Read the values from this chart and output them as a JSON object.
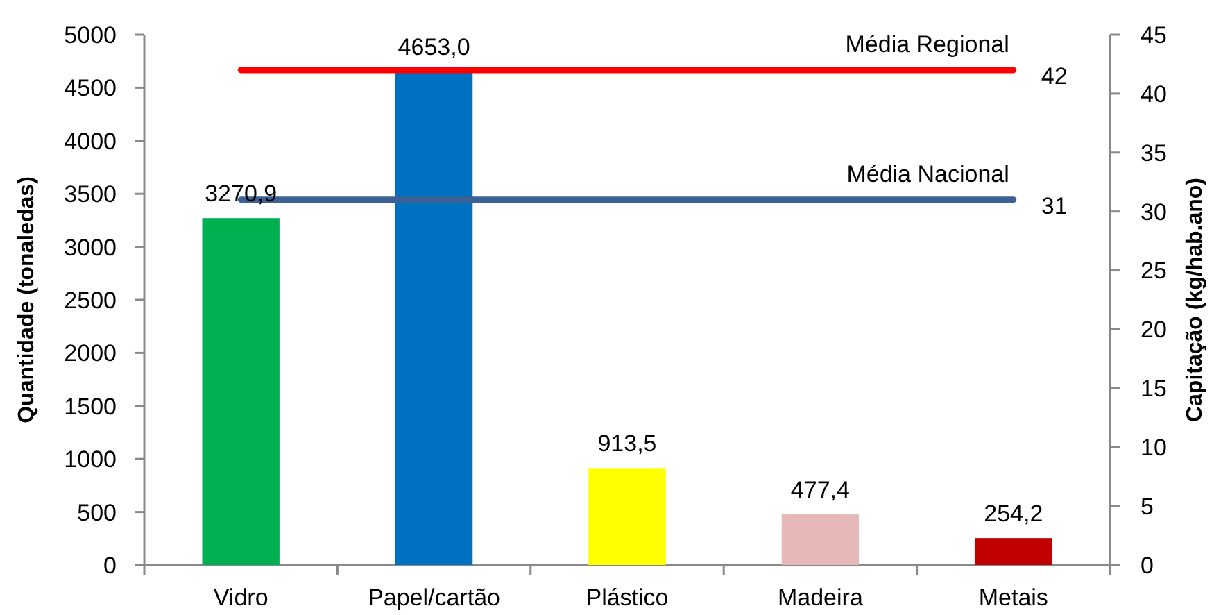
{
  "chart_data": {
    "type": "bar",
    "categories": [
      "Vidro",
      "Papel/cartão",
      "Plástico",
      "Madeira",
      "Metais"
    ],
    "ylabel": "Quantidade (tonaledas)",
    "y2label": "Capitação (kg/hab.ano)",
    "ylim": [
      0,
      5000
    ],
    "yticks": [
      0,
      500,
      1000,
      1500,
      2000,
      2500,
      3000,
      3500,
      4000,
      4500,
      5000
    ],
    "y2lim": [
      0,
      45
    ],
    "y2ticks": [
      0,
      5,
      10,
      15,
      20,
      25,
      30,
      35,
      40,
      45
    ],
    "series": [
      {
        "colors": [
          "#00b050",
          "#0070c0",
          "#ffff00",
          "#e6b9b8",
          "#c00000"
        ],
        "values": [
          3270.9,
          4653.0,
          913.5,
          477.4,
          254.2
        ],
        "value_labels": [
          "3270,9",
          "4653,0",
          "913,5",
          "477,4",
          "254,2"
        ]
      },
      {
        "type": "line",
        "name": "Média Regional",
        "axis": "y2",
        "color": "#ff0000",
        "values": [
          42,
          42,
          42,
          42,
          42
        ],
        "value_labels": [
          null,
          null,
          null,
          null,
          "42"
        ]
      },
      {
        "type": "line",
        "name": "Média Nacional",
        "axis": "y2",
        "color": "#3b6196",
        "values": [
          31,
          31,
          31,
          31,
          31
        ],
        "value_labels": [
          null,
          null,
          null,
          null,
          "31"
        ]
      }
    ]
  }
}
